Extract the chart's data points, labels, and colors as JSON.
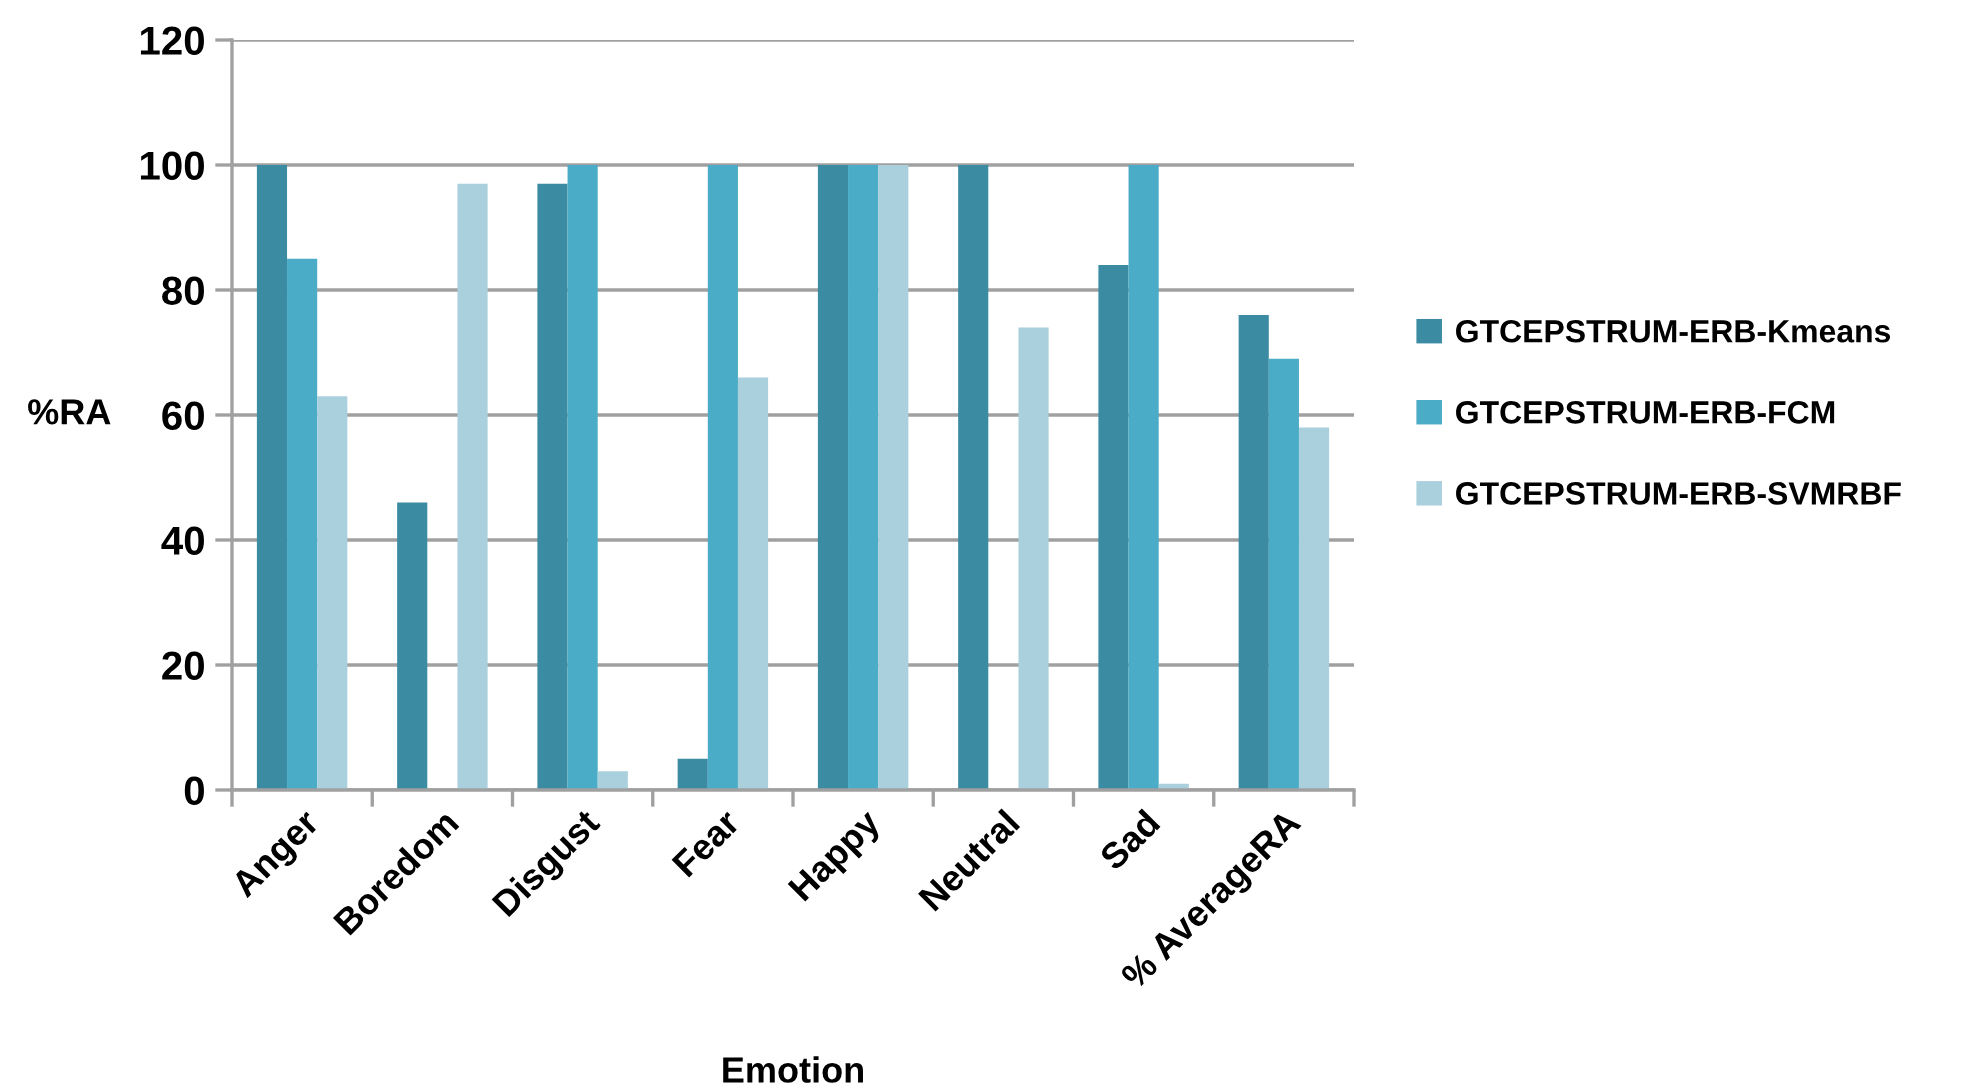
{
  "chart_data": {
    "type": "bar",
    "xlabel": "Emotion",
    "ylabel": "%RA",
    "categories": [
      "Anger",
      "Boredom",
      "Disgust",
      "Fear",
      "Happy",
      "Neutral",
      "Sad",
      "% AverageRA"
    ],
    "series": [
      {
        "name": "GTCEPSTRUM-ERB-Kmeans",
        "color": "#3b8ba3",
        "values": [
          100,
          46,
          97,
          5,
          100,
          100,
          84,
          76
        ]
      },
      {
        "name": "GTCEPSTRUM-ERB-FCM",
        "color": "#4aacc6",
        "values": [
          85,
          0,
          100,
          100,
          100,
          0,
          100,
          69
        ]
      },
      {
        "name": "GTCEPSTRUM-ERB-SVMRBF",
        "color": "#aacfdd",
        "values": [
          63,
          97,
          3,
          66,
          100,
          74,
          1,
          58
        ]
      }
    ],
    "ylim": [
      0,
      120
    ],
    "yticks": [
      0,
      20,
      40,
      60,
      80,
      100,
      120
    ],
    "grid": "y",
    "legend": "right"
  }
}
